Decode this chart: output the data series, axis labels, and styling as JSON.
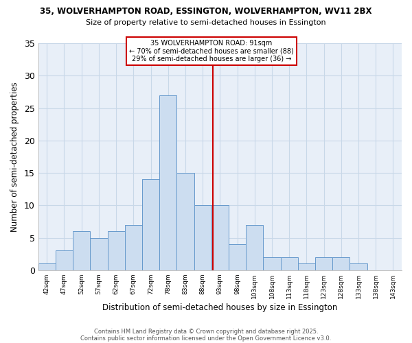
{
  "title_line1": "35, WOLVERHAMPTON ROAD, ESSINGTON, WOLVERHAMPTON, WV11 2BX",
  "title_line2": "Size of property relative to semi-detached houses in Essington",
  "bar_labels": [
    "42sqm",
    "47sqm",
    "52sqm",
    "57sqm",
    "62sqm",
    "67sqm",
    "72sqm",
    "78sqm",
    "83sqm",
    "88sqm",
    "93sqm",
    "98sqm",
    "103sqm",
    "108sqm",
    "113sqm",
    "118sqm",
    "123sqm",
    "128sqm",
    "133sqm",
    "138sqm",
    "143sqm"
  ],
  "bar_values": [
    1,
    3,
    6,
    5,
    6,
    7,
    14,
    27,
    15,
    10,
    10,
    4,
    7,
    2,
    2,
    1,
    2,
    2,
    1,
    0,
    0
  ],
  "bar_color": "#ccddf0",
  "bar_edgecolor": "#6699cc",
  "xlabel": "Distribution of semi-detached houses by size in Essington",
  "ylabel": "Number of semi-detached properties",
  "ylim": [
    0,
    35
  ],
  "yticks": [
    0,
    5,
    10,
    15,
    20,
    25,
    30,
    35
  ],
  "property_line_x": 9,
  "property_line_color": "#cc0000",
  "annotation_title": "35 WOLVERHAMPTON ROAD: 91sqm",
  "annotation_line1": "← 70% of semi-detached houses are smaller (88)",
  "annotation_line2": "29% of semi-detached houses are larger (36) →",
  "annotation_box_color": "#ffffff",
  "annotation_box_edgecolor": "#cc0000",
  "footnote1": "Contains HM Land Registry data © Crown copyright and database right 2025.",
  "footnote2": "Contains public sector information licensed under the Open Government Licence v3.0.",
  "background_color": "#ffffff",
  "grid_color": "#c8d8e8"
}
